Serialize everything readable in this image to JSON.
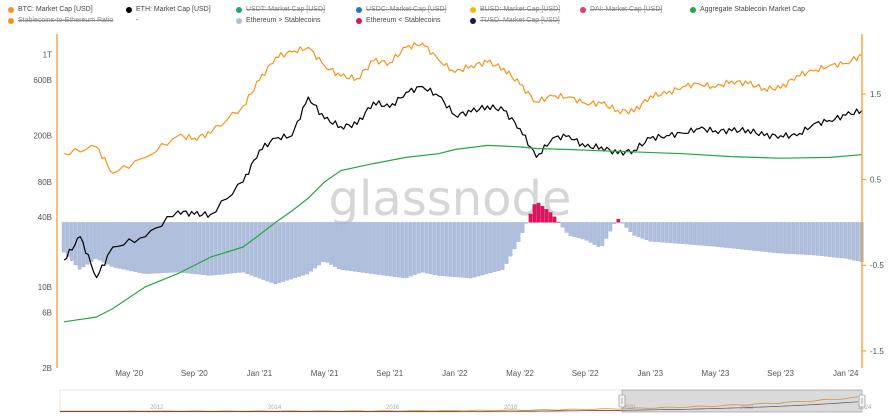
{
  "legend": [
    {
      "label": "BTC: Market Cap [USD]",
      "color": "#f7931a",
      "hidden": false
    },
    {
      "label": "ETH: Market Cap [USD]",
      "color": "#000000",
      "hidden": false
    },
    {
      "label": "USDT: Market Cap [USD]",
      "color": "#26a17b",
      "hidden": true
    },
    {
      "label": "USDC: Market Cap [USD]",
      "color": "#2775ca",
      "hidden": true
    },
    {
      "label": "BUSD: Market Cap [USD]",
      "color": "#f0b90b",
      "hidden": true
    },
    {
      "label": "DAI: Market Cap [USD]",
      "color": "#e5387b",
      "hidden": true
    },
    {
      "label": "Aggregate Stablecoin Market Cap",
      "color": "#26a641",
      "hidden": false
    },
    {
      "label": "Stablecoins-to-Ethereum Ratio",
      "color": "#f7931a",
      "hidden": true
    },
    {
      "label": "-",
      "color": "#ffffff",
      "hidden": false
    },
    {
      "label": "Ethereum > Stablecoins",
      "color": "#b0bfdc",
      "hidden": false
    },
    {
      "label": "Ethereum < Stablecoins",
      "color": "#e0115f",
      "hidden": false
    },
    {
      "label": "TUSD: Market Cap [USD]",
      "color": "#1a1a4e",
      "hidden": true
    }
  ],
  "watermark": "glassnode",
  "chart_data": {
    "type": "line",
    "x_tick_labels": [
      "May '20",
      "Sep '20",
      "Jan '21",
      "May '21",
      "Sep '21",
      "Jan '22",
      "May '22",
      "Sep '22",
      "Jan '23",
      "May '23",
      "Sep '23",
      "Jan '24"
    ],
    "x_range": [
      "2020-01",
      "2024-02"
    ],
    "y_left": {
      "scale": "log",
      "ticks": [
        "1T",
        "600B",
        "200B",
        "80B",
        "40B",
        "10B",
        "6B",
        "2B"
      ],
      "range": [
        2,
        1500
      ]
    },
    "y_right": {
      "scale": "linear",
      "ticks": [
        "1.5",
        "0.5",
        "-0.5",
        "-1.5"
      ],
      "range": [
        -1.7,
        2.2
      ]
    },
    "colors": {
      "btc": "#f7931a",
      "eth": "#000000",
      "stable": "#26a641",
      "ratio_pos": "#b0bfdc",
      "ratio_neg": "#e0115f"
    },
    "series": [
      {
        "name": "BTC: Market Cap [USD]",
        "axis": "left",
        "unit": "B",
        "x": [
          "2020-01",
          "2020-03",
          "2020-04",
          "2020-06",
          "2020-08",
          "2020-09",
          "2020-10",
          "2020-12",
          "2021-01",
          "2021-02",
          "2021-03",
          "2021-04",
          "2021-05",
          "2021-06",
          "2021-07",
          "2021-08",
          "2021-09",
          "2021-10",
          "2021-11",
          "2021-12",
          "2022-01",
          "2022-02",
          "2022-03",
          "2022-04",
          "2022-05",
          "2022-06",
          "2022-07",
          "2022-08",
          "2022-09",
          "2022-10",
          "2022-11",
          "2022-12",
          "2023-01",
          "2023-02",
          "2023-03",
          "2023-04",
          "2023-05",
          "2023-06",
          "2023-07",
          "2023-08",
          "2023-09",
          "2023-10",
          "2023-11",
          "2023-12",
          "2024-01",
          "2024-02"
        ],
        "values": [
          140,
          160,
          95,
          130,
          200,
          190,
          210,
          360,
          600,
          950,
          1050,
          1150,
          800,
          650,
          620,
          880,
          850,
          1150,
          1250,
          900,
          700,
          800,
          860,
          760,
          550,
          390,
          440,
          430,
          380,
          380,
          330,
          320,
          440,
          460,
          530,
          560,
          520,
          590,
          560,
          510,
          510,
          660,
          720,
          800,
          840,
          990
        ]
      },
      {
        "name": "ETH: Market Cap [USD]",
        "axis": "left",
        "unit": "B",
        "x": [
          "2020-01",
          "2020-02",
          "2020-03",
          "2020-04",
          "2020-06",
          "2020-08",
          "2020-09",
          "2020-10",
          "2020-12",
          "2021-01",
          "2021-02",
          "2021-03",
          "2021-04",
          "2021-05",
          "2021-06",
          "2021-07",
          "2021-08",
          "2021-09",
          "2021-10",
          "2021-11",
          "2021-12",
          "2022-01",
          "2022-02",
          "2022-03",
          "2022-04",
          "2022-05",
          "2022-06",
          "2022-07",
          "2022-08",
          "2022-09",
          "2022-10",
          "2022-11",
          "2022-12",
          "2023-01",
          "2023-02",
          "2023-03",
          "2023-04",
          "2023-05",
          "2023-06",
          "2023-07",
          "2023-08",
          "2023-09",
          "2023-10",
          "2023-11",
          "2023-12",
          "2024-01",
          "2024-02"
        ],
        "values": [
          17,
          27,
          12,
          22,
          27,
          45,
          42,
          42,
          80,
          150,
          190,
          200,
          430,
          280,
          240,
          250,
          390,
          350,
          470,
          530,
          440,
          300,
          320,
          360,
          330,
          230,
          130,
          190,
          200,
          160,
          160,
          140,
          150,
          190,
          200,
          210,
          230,
          220,
          220,
          225,
          200,
          200,
          200,
          250,
          270,
          300,
          330
        ]
      },
      {
        "name": "Aggregate Stablecoin Market Cap",
        "axis": "left",
        "unit": "B",
        "x": [
          "2020-01",
          "2020-03",
          "2020-04",
          "2020-06",
          "2020-08",
          "2020-10",
          "2020-12",
          "2021-01",
          "2021-02",
          "2021-03",
          "2021-04",
          "2021-05",
          "2021-06",
          "2021-08",
          "2021-10",
          "2021-12",
          "2022-01",
          "2022-03",
          "2022-05",
          "2022-06",
          "2022-08",
          "2022-10",
          "2022-12",
          "2023-03",
          "2023-06",
          "2023-09",
          "2023-12",
          "2024-02"
        ],
        "values": [
          5,
          5.5,
          6.5,
          10,
          13,
          18,
          22,
          28,
          36,
          45,
          58,
          80,
          100,
          115,
          130,
          140,
          152,
          165,
          160,
          155,
          152,
          148,
          145,
          140,
          132,
          128,
          130,
          137
        ]
      },
      {
        "name": "Stablecoins-to-Ethereum Ratio",
        "axis": "right",
        "type": "bar",
        "x": [
          "2020-01",
          "2020-02",
          "2020-03",
          "2020-04",
          "2020-06",
          "2020-08",
          "2020-10",
          "2020-12",
          "2021-02",
          "2021-04",
          "2021-05",
          "2021-06",
          "2021-08",
          "2021-10",
          "2021-11",
          "2021-12",
          "2022-02",
          "2022-04",
          "2022-05",
          "2022-06",
          "2022-07",
          "2022-08",
          "2022-09",
          "2022-10",
          "2022-11",
          "2022-12",
          "2023-01",
          "2023-03",
          "2023-05",
          "2023-07",
          "2023-09",
          "2023-11",
          "2024-01",
          "2024-02"
        ],
        "values": [
          -0.35,
          -0.55,
          -0.42,
          -0.52,
          -0.6,
          -0.58,
          -0.62,
          -0.58,
          -0.72,
          -0.6,
          -0.45,
          -0.55,
          -0.6,
          -0.65,
          -0.58,
          -0.62,
          -0.65,
          -0.55,
          -0.2,
          0.25,
          0.1,
          -0.15,
          -0.2,
          -0.3,
          0.05,
          -0.15,
          -0.22,
          -0.25,
          -0.28,
          -0.32,
          -0.36,
          -0.38,
          -0.42,
          -0.46
        ]
      }
    ]
  },
  "navigator": {
    "labels": [
      "2012",
      "2014",
      "2016",
      "2018",
      "2020",
      "2022",
      "2024"
    ]
  }
}
